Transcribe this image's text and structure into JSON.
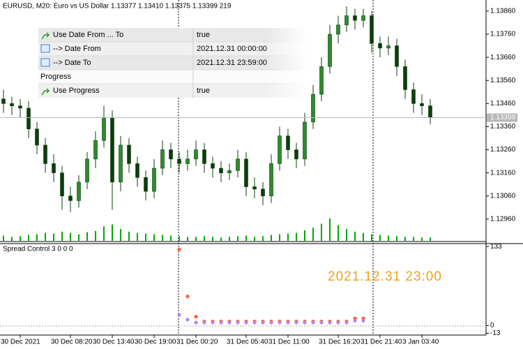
{
  "chart_data": [
    {
      "type": "candlestick",
      "title": "EURUSD, M20:  Euro vs US Dollar  1.13377 1.13410 1.13375 1.13399  219",
      "categories": [
        null,
        null,
        "30 Dec 2021",
        null,
        null,
        null,
        null,
        null,
        "30 Dec 08:20",
        null,
        null,
        null,
        null,
        "30 Dec 13:40",
        null,
        null,
        null,
        null,
        "30 Dec 19:00",
        null,
        null,
        null,
        null,
        "31 Dec 00:20",
        null,
        null,
        null,
        null,
        null,
        "31 Dec 05:40",
        null,
        null,
        null,
        null,
        "31 Dec 11:00",
        null,
        null,
        null,
        null,
        null,
        "31 Dec 16:20",
        null,
        null,
        null,
        null,
        "31 Dec 21:40",
        null,
        null,
        null,
        null,
        "3 Jan 03:40",
        null
      ],
      "ohlc": [
        [
          1.1348,
          1.1352,
          1.1342,
          1.1346
        ],
        [
          1.1346,
          1.1349,
          1.1341,
          1.1345
        ],
        [
          1.1345,
          1.1348,
          1.134,
          1.1344
        ],
        [
          1.1344,
          1.1347,
          1.1331,
          1.1335
        ],
        [
          1.1335,
          1.1338,
          1.1324,
          1.1328
        ],
        [
          1.1328,
          1.1331,
          1.1316,
          1.132
        ],
        [
          1.132,
          1.1324,
          1.1312,
          1.1316
        ],
        [
          1.1316,
          1.1319,
          1.13,
          1.1306
        ],
        [
          1.1306,
          1.131,
          1.1299,
          1.1304
        ],
        [
          1.1304,
          1.1315,
          1.1301,
          1.1312
        ],
        [
          1.1312,
          1.1325,
          1.1309,
          1.1322
        ],
        [
          1.1322,
          1.1334,
          1.1318,
          1.133
        ],
        [
          1.133,
          1.1345,
          1.1327,
          1.134
        ],
        [
          1.134,
          1.1343,
          1.13,
          1.1312
        ],
        [
          1.1312,
          1.1332,
          1.1308,
          1.1328
        ],
        [
          1.1328,
          1.1331,
          1.1316,
          1.132
        ],
        [
          1.132,
          1.1323,
          1.131,
          1.1314
        ],
        [
          1.1314,
          1.1317,
          1.1304,
          1.1308
        ],
        [
          1.1308,
          1.1322,
          1.1305,
          1.1318
        ],
        [
          1.1318,
          1.133,
          1.1315,
          1.1326
        ],
        [
          1.1326,
          1.1329,
          1.1318,
          1.1322
        ],
        [
          1.1322,
          1.1325,
          1.1316,
          1.132
        ],
        [
          1.132,
          1.1326,
          1.1317,
          1.1322
        ],
        [
          1.1322,
          1.133,
          1.1319,
          1.1326
        ],
        [
          1.1326,
          1.1329,
          1.1316,
          1.132
        ],
        [
          1.132,
          1.1323,
          1.1314,
          1.1318
        ],
        [
          1.1318,
          1.1321,
          1.1312,
          1.1316
        ],
        [
          1.1316,
          1.132,
          1.1313,
          1.1317
        ],
        [
          1.1317,
          1.1326,
          1.1314,
          1.1322
        ],
        [
          1.1322,
          1.1325,
          1.1306,
          1.131
        ],
        [
          1.131,
          1.1314,
          1.1305,
          1.1309
        ],
        [
          1.1309,
          1.1312,
          1.1302,
          1.1306
        ],
        [
          1.1306,
          1.1324,
          1.1303,
          1.132
        ],
        [
          1.132,
          1.1336,
          1.1317,
          1.1332
        ],
        [
          1.1332,
          1.1335,
          1.1322,
          1.1326
        ],
        [
          1.1326,
          1.1329,
          1.1318,
          1.1322
        ],
        [
          1.1322,
          1.1342,
          1.1319,
          1.1338
        ],
        [
          1.1338,
          1.1354,
          1.1335,
          1.135
        ],
        [
          1.135,
          1.1366,
          1.1347,
          1.1362
        ],
        [
          1.1362,
          1.138,
          1.1359,
          1.1376
        ],
        [
          1.1376,
          1.1384,
          1.1372,
          1.138
        ],
        [
          1.138,
          1.1388,
          1.1377,
          1.1384
        ],
        [
          1.1384,
          1.1387,
          1.1378,
          1.1382
        ],
        [
          1.1382,
          1.1387,
          1.1379,
          1.1384
        ],
        [
          1.1384,
          1.1386,
          1.1368,
          1.1372
        ],
        [
          1.1372,
          1.1375,
          1.1366,
          1.137
        ],
        [
          1.137,
          1.1375,
          1.1367,
          1.1371
        ],
        [
          1.1371,
          1.1374,
          1.1358,
          1.1362
        ],
        [
          1.1362,
          1.1365,
          1.1348,
          1.1352
        ],
        [
          1.1352,
          1.1355,
          1.1342,
          1.1346
        ],
        [
          1.1346,
          1.135,
          1.1341,
          1.1345
        ],
        [
          1.1345,
          1.1348,
          1.1337,
          1.134
        ]
      ],
      "volume": [
        8,
        6,
        7,
        9,
        10,
        12,
        11,
        14,
        12,
        10,
        13,
        15,
        22,
        25,
        18,
        14,
        12,
        11,
        10,
        9,
        8,
        7,
        6,
        6,
        7,
        6,
        5,
        6,
        7,
        8,
        6,
        7,
        9,
        10,
        11,
        12,
        16,
        20,
        26,
        34,
        24,
        18,
        14,
        12,
        10,
        9,
        8,
        7,
        6,
        6,
        5,
        5
      ],
      "up_color": "#2e8b2e",
      "down_color": "#0d3d0d",
      "volume_color": "#00a800",
      "current_price": 1.13399,
      "ylim": [
        1.12866,
        1.13902
      ],
      "yticks": [
        {
          "value": 1.1386,
          "label": "1.13860"
        },
        {
          "value": 1.1376,
          "label": "1.13760"
        },
        {
          "value": 1.1366,
          "label": "1.13660"
        },
        {
          "value": 1.1356,
          "label": "1.13560"
        },
        {
          "value": 1.1346,
          "label": "1.13460"
        },
        {
          "value": 1.1336,
          "label": "1.13360"
        },
        {
          "value": 1.1326,
          "label": "1.13260"
        },
        {
          "value": 1.1316,
          "label": "1.13160"
        },
        {
          "value": 1.1306,
          "label": "1.13060"
        },
        {
          "value": 1.1296,
          "label": "1.12960"
        }
      ]
    },
    {
      "type": "scatter",
      "title": "Spread Control 3 0 0 0",
      "annotation": "2021.12.31  23:00",
      "series": [
        {
          "color": "#ff6040",
          "values": [
            null,
            null,
            null,
            null,
            null,
            null,
            null,
            null,
            null,
            null,
            null,
            null,
            null,
            null,
            null,
            null,
            null,
            null,
            null,
            null,
            null,
            128,
            49,
            15,
            7,
            7,
            7,
            7,
            7,
            7,
            7,
            7,
            7,
            7,
            7,
            7,
            7,
            7,
            7,
            7,
            7,
            7,
            12,
            12,
            null,
            null,
            null,
            null,
            null,
            null,
            null,
            null
          ]
        },
        {
          "color": "#b58ae6",
          "values": [
            null,
            null,
            null,
            null,
            null,
            null,
            null,
            null,
            null,
            null,
            null,
            null,
            null,
            null,
            null,
            null,
            null,
            null,
            null,
            null,
            null,
            18,
            10,
            5,
            5,
            5,
            5,
            5,
            5,
            5,
            5,
            5,
            5,
            5,
            5,
            5,
            5,
            5,
            5,
            5,
            5,
            5,
            8,
            8,
            null,
            null,
            null,
            null,
            null,
            null,
            null,
            null
          ]
        }
      ],
      "ylim": [
        -16,
        139
      ],
      "yticks": [
        133,
        0,
        -13
      ]
    }
  ],
  "settings_panel": {
    "rows": [
      {
        "name": "Use Date From ... To",
        "value": "true"
      },
      {
        "name": "--> Date From",
        "value": "2021.12.31 00:00:00"
      },
      {
        "name": "--> Date To",
        "value": "2021.12.31 23:59:00"
      },
      {
        "name": "Progress"
      },
      {
        "name": "Use Progress",
        "value": "true"
      }
    ]
  }
}
